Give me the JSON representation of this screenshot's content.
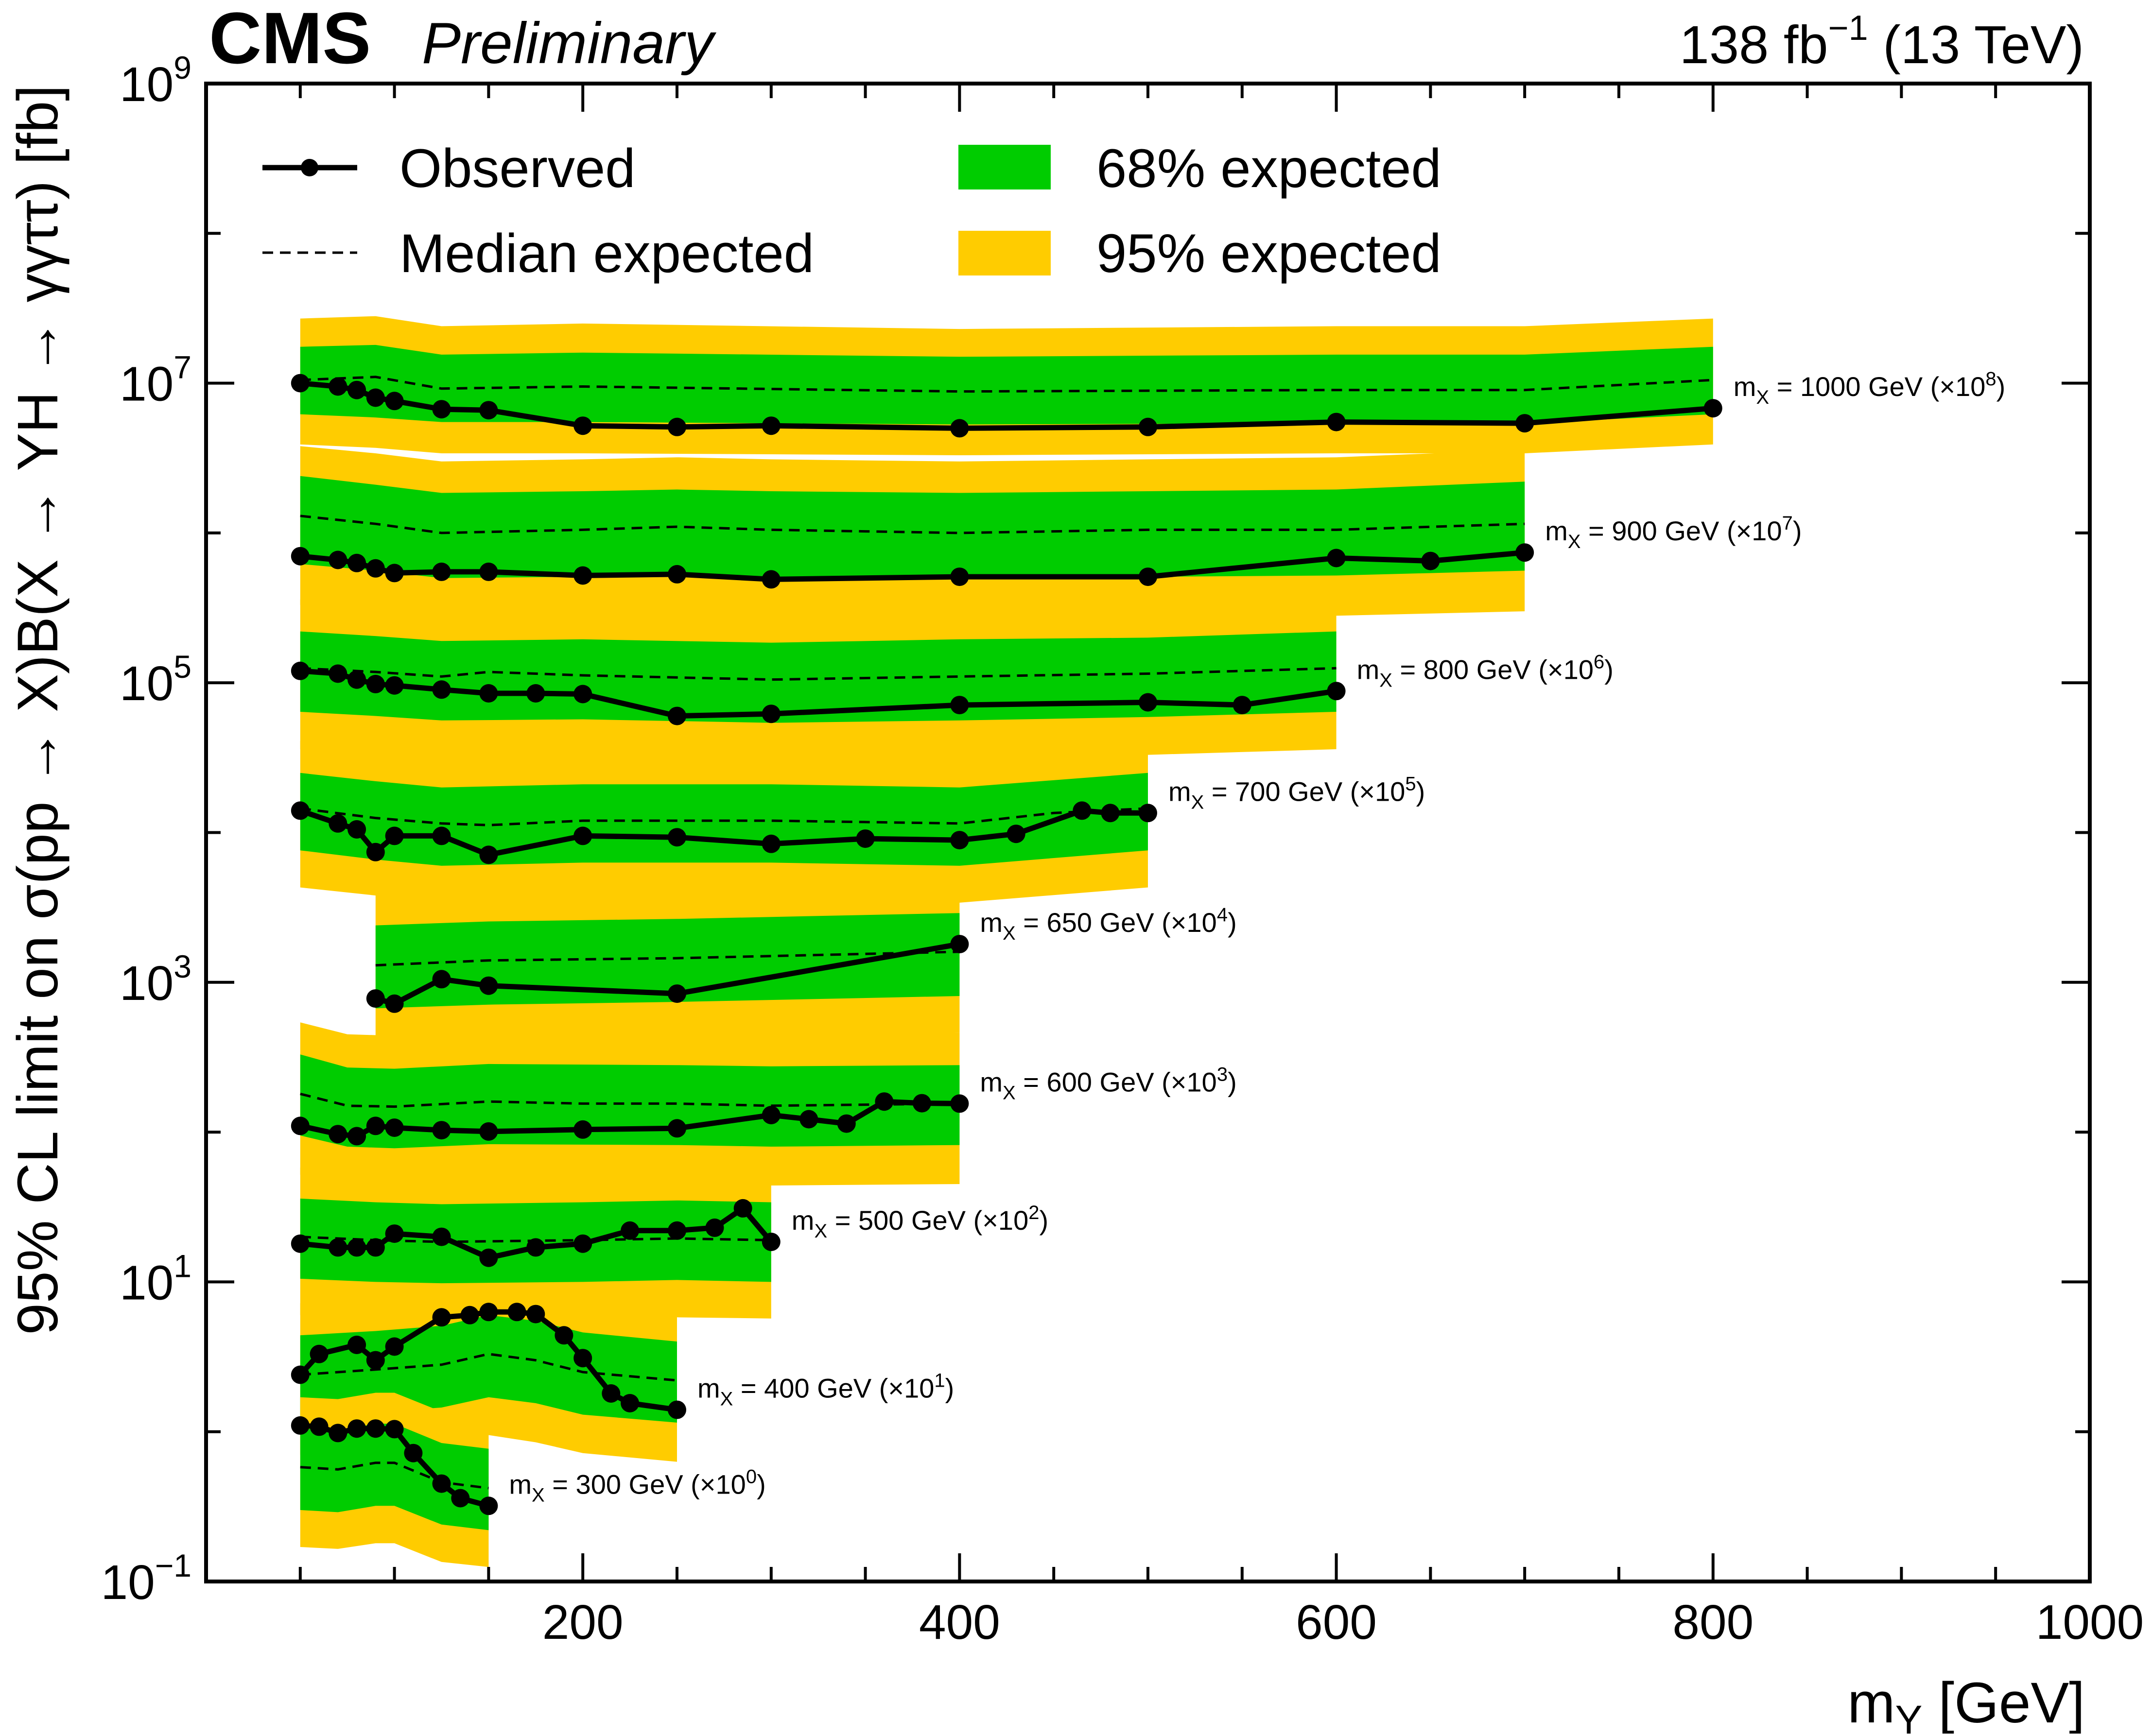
{
  "header": {
    "experiment": "CMS",
    "status": "Preliminary",
    "lumi_prefix": "138 fb",
    "lumi_exp": "−1",
    "lumi_suffix": " (13 TeV)"
  },
  "legend": {
    "observed": "Observed",
    "median": "Median expected",
    "band68": "68% expected",
    "band95": "95% expected",
    "placement": "top"
  },
  "colors": {
    "band68": "#00cc00",
    "band95": "#ffcc00",
    "line": "#000000"
  },
  "chart_data": {
    "type": "line",
    "yscale": "log",
    "xlim": [
      0,
      1000
    ],
    "ylim": [
      0.1,
      1000000000
    ],
    "grid": false,
    "xlabel": {
      "main": "m",
      "sub": "Y",
      "rest": " [GeV]"
    },
    "ylabel": "95% CL limit on σ(pp → X)B(X → YH → γγττ) [fb]",
    "xticks": [
      200,
      400,
      600,
      800,
      1000
    ],
    "yticks": [
      {
        "value": 0.1,
        "base": "10",
        "exp": "−1"
      },
      {
        "value": 10,
        "base": "10",
        "exp": "1"
      },
      {
        "value": 1000,
        "base": "10",
        "exp": "3"
      },
      {
        "value": 100000,
        "base": "10",
        "exp": "5"
      },
      {
        "value": 10000000,
        "base": "10",
        "exp": "7"
      },
      {
        "value": 1000000000,
        "base": "10",
        "exp": "9"
      }
    ],
    "series": [
      {
        "name": "m_X = 1000 GeV (×10^8)",
        "label": {
          "pre": "m",
          "sub": "X",
          "mid": " = 1000 GeV (×10",
          "exp": "8",
          "post": ")"
        },
        "obs_x": [
          50,
          70,
          80,
          90,
          100,
          125,
          150,
          200,
          250,
          300,
          400,
          500,
          600,
          700,
          800
        ],
        "obs": [
          10000000,
          9500000,
          9000000,
          8000000,
          7600000,
          6700000,
          6600000,
          5200000,
          5100000,
          5200000,
          5000000,
          5100000,
          5500000,
          5400000,
          6800000
        ],
        "exp_x": [
          50,
          90,
          125,
          200,
          400,
          600,
          700,
          800
        ],
        "exp_median": [
          10500000,
          11000000,
          9200000,
          9500000,
          8800000,
          9000000,
          9000000,
          10500000
        ],
        "band_x": [
          50,
          90,
          125,
          200,
          400,
          600,
          700,
          800
        ],
        "band68_lo": [
          6200000,
          5900000,
          5500000,
          5500000,
          5300000,
          5400000,
          5400000,
          6200000
        ],
        "band68_hi": [
          17500000,
          18000000,
          15500000,
          16000000,
          15000000,
          15500000,
          15500000,
          17500000
        ],
        "band95_lo": [
          3900000,
          3700000,
          3400000,
          3400000,
          3300000,
          3400000,
          3400000,
          3900000
        ],
        "band95_hi": [
          27000000,
          28000000,
          24000000,
          25000000,
          23000000,
          24000000,
          24000000,
          27000000
        ]
      },
      {
        "name": "m_X = 900 GeV (×10^7)",
        "label": {
          "pre": "m",
          "sub": "X",
          "mid": " = 900 GeV (×10",
          "exp": "7",
          "post": ")"
        },
        "obs_x": [
          50,
          70,
          80,
          90,
          100,
          125,
          150,
          200,
          250,
          300,
          400,
          500,
          600,
          650,
          700
        ],
        "obs": [
          700000,
          660000,
          630000,
          580000,
          540000,
          550000,
          550000,
          520000,
          530000,
          490000,
          510000,
          510000,
          680000,
          650000,
          740000
        ],
        "exp_x": [
          50,
          90,
          125,
          200,
          250,
          300,
          400,
          500,
          600,
          700
        ],
        "exp_median": [
          1300000,
          1150000,
          1000000,
          1050000,
          1100000,
          1050000,
          1000000,
          1050000,
          1050000,
          1150000
        ],
        "band_x": [
          50,
          90,
          125,
          200,
          250,
          300,
          400,
          500,
          600,
          700
        ],
        "band68_lo": [
          620000,
          560000,
          500000,
          510000,
          520000,
          500000,
          490000,
          510000,
          520000,
          560000
        ],
        "band68_hi": [
          2400000,
          2100000,
          1850000,
          1900000,
          1950000,
          1900000,
          1850000,
          1900000,
          1950000,
          2200000
        ],
        "band95_lo": [
          330000,
          300000,
          260000,
          270000,
          280000,
          270000,
          260000,
          270000,
          280000,
          300000
        ],
        "band95_hi": [
          3800000,
          3400000,
          3000000,
          3100000,
          3200000,
          3100000,
          3000000,
          3100000,
          3200000,
          3600000
        ]
      },
      {
        "name": "m_X = 800 GeV (×10^6)",
        "label": {
          "pre": "m",
          "sub": "X",
          "mid": " = 800 GeV (×10",
          "exp": "6",
          "post": ")"
        },
        "obs_x": [
          50,
          70,
          80,
          90,
          100,
          125,
          150,
          175,
          200,
          250,
          300,
          400,
          500,
          550,
          600
        ],
        "obs": [
          120000,
          115000,
          105000,
          98000,
          96000,
          90000,
          85000,
          85000,
          84000,
          60000,
          62000,
          71000,
          74000,
          71000,
          88000
        ],
        "exp_x": [
          50,
          90,
          125,
          150,
          200,
          300,
          400,
          500,
          600
        ],
        "exp_median": [
          125000,
          118000,
          110000,
          118000,
          112000,
          105000,
          110000,
          115000,
          125000
        ],
        "band_x": [
          50,
          90,
          125,
          200,
          300,
          400,
          500,
          600
        ],
        "band68_lo": [
          64000,
          60000,
          56000,
          57000,
          54000,
          56000,
          59000,
          64000
        ],
        "band68_hi": [
          220000,
          205000,
          190000,
          195000,
          185000,
          195000,
          200000,
          220000
        ],
        "band95_lo": [
          36000,
          34000,
          31000,
          32000,
          30000,
          31000,
          33000,
          36000
        ],
        "band95_hi": [
          360000,
          340000,
          310000,
          320000,
          305000,
          320000,
          330000,
          360000
        ]
      },
      {
        "name": "m_X = 700 GeV (×10^5)",
        "label": {
          "pre": "m",
          "sub": "X",
          "mid": " = 700 GeV (×10",
          "exp": "5",
          "post": ")"
        },
        "obs_x": [
          50,
          70,
          80,
          90,
          100,
          125,
          150,
          200,
          250,
          300,
          350,
          400,
          430,
          465,
          480,
          500
        ],
        "obs": [
          14000,
          11500,
          10500,
          7400,
          9500,
          9500,
          7100,
          9500,
          9300,
          8400,
          9100,
          8900,
          9800,
          14000,
          13500,
          13500
        ],
        "exp_x": [
          50,
          90,
          125,
          150,
          200,
          300,
          400,
          450,
          500
        ],
        "exp_median": [
          14500,
          12500,
          11500,
          11200,
          12000,
          12000,
          11500,
          13500,
          14500
        ],
        "band_x": [
          50,
          90,
          125,
          200,
          300,
          400,
          500
        ],
        "band68_lo": [
          7600,
          6600,
          6000,
          6300,
          6300,
          6000,
          7600
        ],
        "band68_hi": [
          25000,
          22000,
          20000,
          21000,
          21000,
          20000,
          25000
        ],
        "band95_lo": [
          4300,
          3800,
          3400,
          3600,
          3600,
          3400,
          4300
        ],
        "band95_hi": [
          41000,
          36000,
          33000,
          34000,
          34000,
          33000,
          41000
        ]
      },
      {
        "name": "m_X = 650 GeV (×10^4)",
        "label": {
          "pre": "m",
          "sub": "X",
          "mid": " = 650 GeV (×10",
          "exp": "4",
          "post": ")"
        },
        "obs_x": [
          90,
          100,
          125,
          150,
          250,
          400
        ],
        "obs": [
          780,
          720,
          1050,
          950,
          840,
          1800
        ],
        "exp_x": [
          90,
          150,
          250,
          400
        ],
        "exp_median": [
          1300,
          1400,
          1450,
          1600
        ],
        "band_x": [
          90,
          150,
          250,
          400
        ],
        "band68_lo": [
          670,
          710,
          740,
          810
        ],
        "band68_hi": [
          2400,
          2550,
          2650,
          2900
        ],
        "band95_lo": [
          380,
          400,
          420,
          460
        ],
        "band95_hi": [
          3900,
          4100,
          4300,
          4700
        ]
      },
      {
        "name": "m_X = 600 GeV (×10^3)",
        "label": {
          "pre": "m",
          "sub": "X",
          "mid": " = 600 GeV (×10",
          "exp": "3",
          "post": ")"
        },
        "obs_x": [
          50,
          70,
          80,
          90,
          100,
          125,
          150,
          200,
          250,
          300,
          320,
          340,
          360,
          380,
          400
        ],
        "obs": [
          110,
          97,
          94,
          110,
          107,
          103,
          101,
          104,
          106,
          130,
          122,
          114,
          160,
          156,
          155
        ],
        "exp_x": [
          50,
          75,
          100,
          150,
          200,
          250,
          300,
          400
        ],
        "exp_median": [
          180,
          150,
          148,
          160,
          155,
          155,
          150,
          155
        ],
        "band_x": [
          50,
          75,
          100,
          150,
          250,
          300,
          400
        ],
        "band68_lo": [
          95,
          80,
          78,
          83,
          82,
          80,
          82
        ],
        "band68_hi": [
          330,
          270,
          265,
          285,
          280,
          275,
          280
        ],
        "band95_lo": [
          52,
          44,
          43,
          46,
          45,
          44,
          45
        ],
        "band95_hi": [
          540,
          450,
          440,
          475,
          465,
          455,
          460
        ]
      },
      {
        "name": "m_X = 500 GeV (×10^2)",
        "label": {
          "pre": "m",
          "sub": "X",
          "mid": " = 500 GeV (×10",
          "exp": "2",
          "post": ")"
        },
        "obs_x": [
          50,
          70,
          80,
          90,
          100,
          125,
          150,
          175,
          200,
          225,
          250,
          270,
          285,
          300
        ],
        "obs": [
          18,
          17,
          17,
          17,
          21,
          20,
          14.5,
          17,
          18,
          22,
          22,
          23,
          31,
          18.5
        ],
        "exp_x": [
          50,
          90,
          125,
          200,
          250,
          300
        ],
        "exp_median": [
          20,
          19,
          18.5,
          19,
          19.5,
          19
        ],
        "band_x": [
          50,
          90,
          125,
          200,
          250,
          300
        ],
        "band68_lo": [
          10.5,
          10,
          9.8,
          10,
          10.3,
          10
        ],
        "band68_hi": [
          36,
          34,
          33,
          34,
          35,
          34
        ],
        "band95_lo": [
          6,
          5.7,
          5.5,
          5.7,
          5.8,
          5.7
        ],
        "band95_hi": [
          58,
          55,
          53,
          55,
          56,
          55
        ]
      },
      {
        "name": "m_X = 400 GeV (×10^1)",
        "label": {
          "pre": "m",
          "sub": "X",
          "mid": " = 400 GeV (×10",
          "exp": "1",
          "post": ")"
        },
        "obs_x": [
          50,
          60,
          80,
          90,
          100,
          125,
          140,
          150,
          165,
          175,
          190,
          200,
          215,
          225,
          250
        ],
        "obs": [
          2.4,
          3.3,
          3.8,
          3,
          3.7,
          5.8,
          6,
          6.3,
          6.3,
          6.1,
          4.4,
          3.1,
          1.8,
          1.55,
          1.4
        ],
        "exp_x": [
          50,
          90,
          125,
          150,
          175,
          200,
          250
        ],
        "exp_median": [
          2.4,
          2.6,
          2.8,
          3.3,
          3,
          2.5,
          2.2
        ],
        "band_x": [
          50,
          90,
          125,
          150,
          175,
          200,
          250
        ],
        "band68_lo": [
          1.25,
          1.35,
          1.45,
          1.7,
          1.55,
          1.3,
          1.15
        ],
        "band68_hi": [
          4.4,
          4.7,
          5.1,
          6,
          5.5,
          4.6,
          4
        ],
        "band95_lo": [
          0.7,
          0.75,
          0.8,
          0.95,
          0.85,
          0.72,
          0.63
        ],
        "band95_hi": [
          7.2,
          7.7,
          8.3,
          9.8,
          8.9,
          7.5,
          6.5
        ]
      },
      {
        "name": "m_X = 300 GeV (×10^0)",
        "label": {
          "pre": "m",
          "sub": "X",
          "mid": " = 300 GeV (×10",
          "exp": "0",
          "post": ")"
        },
        "obs_x": [
          50,
          60,
          70,
          80,
          90,
          100,
          110,
          125,
          135,
          150
        ],
        "obs": [
          1.1,
          1.08,
          0.98,
          1.05,
          1.05,
          1.04,
          0.72,
          0.45,
          0.36,
          0.32
        ],
        "exp_x": [
          50,
          70,
          90,
          100,
          125,
          150
        ],
        "exp_median": [
          0.58,
          0.56,
          0.62,
          0.62,
          0.46,
          0.42
        ],
        "band_x": [
          50,
          70,
          90,
          100,
          125,
          150
        ],
        "band68_lo": [
          0.3,
          0.29,
          0.32,
          0.32,
          0.24,
          0.22
        ],
        "band68_hi": [
          1.05,
          1.02,
          1.13,
          1.13,
          0.84,
          0.77
        ],
        "band95_lo": [
          0.17,
          0.165,
          0.18,
          0.18,
          0.135,
          0.125
        ],
        "band95_hi": [
          1.7,
          1.65,
          1.82,
          1.82,
          1.36,
          1.25
        ]
      }
    ]
  }
}
